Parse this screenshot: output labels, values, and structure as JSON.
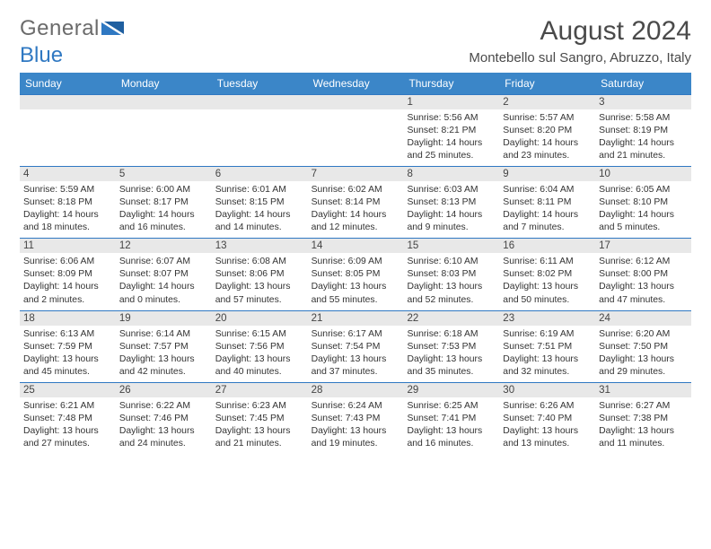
{
  "logo": {
    "text1": "General",
    "text2": "Blue"
  },
  "title": "August 2024",
  "subtitle": "Montebello sul Sangro, Abruzzo, Italy",
  "colors": {
    "header_bar": "#3b86c8",
    "daynum_bg": "#e8e8e8",
    "rule": "#2f78c2",
    "text": "#333333",
    "logo_gray": "#6b6b6b",
    "logo_blue": "#2f78c2"
  },
  "weekdays": [
    "Sunday",
    "Monday",
    "Tuesday",
    "Wednesday",
    "Thursday",
    "Friday",
    "Saturday"
  ],
  "weeks": [
    [
      null,
      null,
      null,
      null,
      {
        "n": "1",
        "sunrise": "5:56 AM",
        "sunset": "8:21 PM",
        "dayl": "Daylight: 14 hours and 25 minutes."
      },
      {
        "n": "2",
        "sunrise": "5:57 AM",
        "sunset": "8:20 PM",
        "dayl": "Daylight: 14 hours and 23 minutes."
      },
      {
        "n": "3",
        "sunrise": "5:58 AM",
        "sunset": "8:19 PM",
        "dayl": "Daylight: 14 hours and 21 minutes."
      }
    ],
    [
      {
        "n": "4",
        "sunrise": "5:59 AM",
        "sunset": "8:18 PM",
        "dayl": "Daylight: 14 hours and 18 minutes."
      },
      {
        "n": "5",
        "sunrise": "6:00 AM",
        "sunset": "8:17 PM",
        "dayl": "Daylight: 14 hours and 16 minutes."
      },
      {
        "n": "6",
        "sunrise": "6:01 AM",
        "sunset": "8:15 PM",
        "dayl": "Daylight: 14 hours and 14 minutes."
      },
      {
        "n": "7",
        "sunrise": "6:02 AM",
        "sunset": "8:14 PM",
        "dayl": "Daylight: 14 hours and 12 minutes."
      },
      {
        "n": "8",
        "sunrise": "6:03 AM",
        "sunset": "8:13 PM",
        "dayl": "Daylight: 14 hours and 9 minutes."
      },
      {
        "n": "9",
        "sunrise": "6:04 AM",
        "sunset": "8:11 PM",
        "dayl": "Daylight: 14 hours and 7 minutes."
      },
      {
        "n": "10",
        "sunrise": "6:05 AM",
        "sunset": "8:10 PM",
        "dayl": "Daylight: 14 hours and 5 minutes."
      }
    ],
    [
      {
        "n": "11",
        "sunrise": "6:06 AM",
        "sunset": "8:09 PM",
        "dayl": "Daylight: 14 hours and 2 minutes."
      },
      {
        "n": "12",
        "sunrise": "6:07 AM",
        "sunset": "8:07 PM",
        "dayl": "Daylight: 14 hours and 0 minutes."
      },
      {
        "n": "13",
        "sunrise": "6:08 AM",
        "sunset": "8:06 PM",
        "dayl": "Daylight: 13 hours and 57 minutes."
      },
      {
        "n": "14",
        "sunrise": "6:09 AM",
        "sunset": "8:05 PM",
        "dayl": "Daylight: 13 hours and 55 minutes."
      },
      {
        "n": "15",
        "sunrise": "6:10 AM",
        "sunset": "8:03 PM",
        "dayl": "Daylight: 13 hours and 52 minutes."
      },
      {
        "n": "16",
        "sunrise": "6:11 AM",
        "sunset": "8:02 PM",
        "dayl": "Daylight: 13 hours and 50 minutes."
      },
      {
        "n": "17",
        "sunrise": "6:12 AM",
        "sunset": "8:00 PM",
        "dayl": "Daylight: 13 hours and 47 minutes."
      }
    ],
    [
      {
        "n": "18",
        "sunrise": "6:13 AM",
        "sunset": "7:59 PM",
        "dayl": "Daylight: 13 hours and 45 minutes."
      },
      {
        "n": "19",
        "sunrise": "6:14 AM",
        "sunset": "7:57 PM",
        "dayl": "Daylight: 13 hours and 42 minutes."
      },
      {
        "n": "20",
        "sunrise": "6:15 AM",
        "sunset": "7:56 PM",
        "dayl": "Daylight: 13 hours and 40 minutes."
      },
      {
        "n": "21",
        "sunrise": "6:17 AM",
        "sunset": "7:54 PM",
        "dayl": "Daylight: 13 hours and 37 minutes."
      },
      {
        "n": "22",
        "sunrise": "6:18 AM",
        "sunset": "7:53 PM",
        "dayl": "Daylight: 13 hours and 35 minutes."
      },
      {
        "n": "23",
        "sunrise": "6:19 AM",
        "sunset": "7:51 PM",
        "dayl": "Daylight: 13 hours and 32 minutes."
      },
      {
        "n": "24",
        "sunrise": "6:20 AM",
        "sunset": "7:50 PM",
        "dayl": "Daylight: 13 hours and 29 minutes."
      }
    ],
    [
      {
        "n": "25",
        "sunrise": "6:21 AM",
        "sunset": "7:48 PM",
        "dayl": "Daylight: 13 hours and 27 minutes."
      },
      {
        "n": "26",
        "sunrise": "6:22 AM",
        "sunset": "7:46 PM",
        "dayl": "Daylight: 13 hours and 24 minutes."
      },
      {
        "n": "27",
        "sunrise": "6:23 AM",
        "sunset": "7:45 PM",
        "dayl": "Daylight: 13 hours and 21 minutes."
      },
      {
        "n": "28",
        "sunrise": "6:24 AM",
        "sunset": "7:43 PM",
        "dayl": "Daylight: 13 hours and 19 minutes."
      },
      {
        "n": "29",
        "sunrise": "6:25 AM",
        "sunset": "7:41 PM",
        "dayl": "Daylight: 13 hours and 16 minutes."
      },
      {
        "n": "30",
        "sunrise": "6:26 AM",
        "sunset": "7:40 PM",
        "dayl": "Daylight: 13 hours and 13 minutes."
      },
      {
        "n": "31",
        "sunrise": "6:27 AM",
        "sunset": "7:38 PM",
        "dayl": "Daylight: 13 hours and 11 minutes."
      }
    ]
  ],
  "labels": {
    "sunrise": "Sunrise: ",
    "sunset": "Sunset: "
  }
}
